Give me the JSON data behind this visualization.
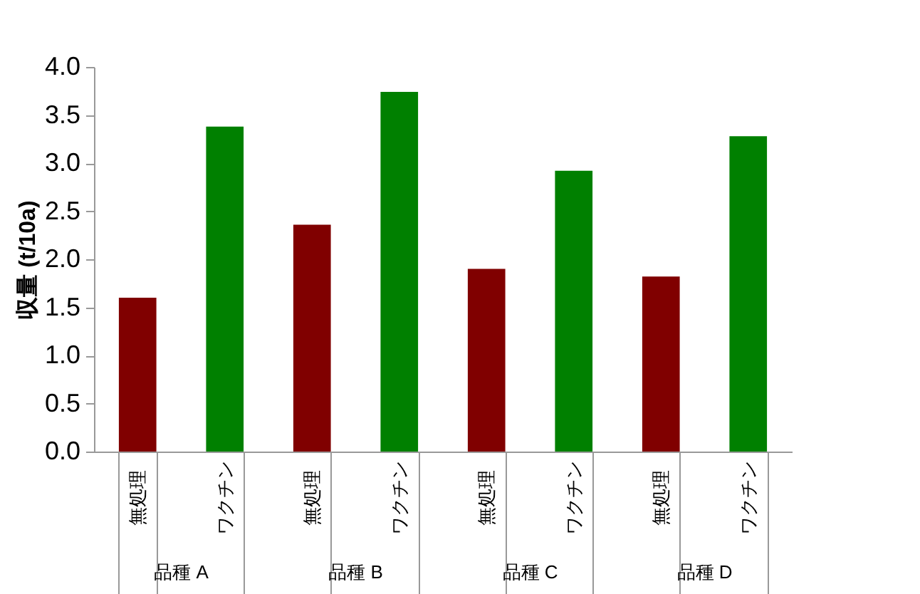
{
  "chart_data": {
    "type": "bar",
    "ylabel": "収量 (t/10a)",
    "categories": [
      "無処理",
      "ワクチン",
      "無処理",
      "ワクチン",
      "無処理",
      "ワクチン",
      "無処理",
      "ワクチン"
    ],
    "values": [
      1.6,
      3.38,
      2.36,
      3.74,
      1.9,
      2.92,
      1.82,
      3.28
    ],
    "colors": [
      "#800000",
      "#008000",
      "#800000",
      "#008000",
      "#800000",
      "#008000",
      "#800000",
      "#008000"
    ],
    "annotations": [
      "品種 A",
      "品種 B",
      "品種 C",
      "品種 D"
    ],
    "ylim": [
      0,
      4
    ],
    "yticks": [
      {
        "value": 0,
        "label": "0.0"
      },
      0.5,
      {
        "value": 1,
        "label": "1.0"
      },
      1.5,
      {
        "value": 2,
        "label": "2.0"
      },
      2.5,
      {
        "value": 3,
        "label": "3.0"
      },
      3.5,
      {
        "value": 4,
        "label": "4.0"
      }
    ],
    "grid": false
  }
}
